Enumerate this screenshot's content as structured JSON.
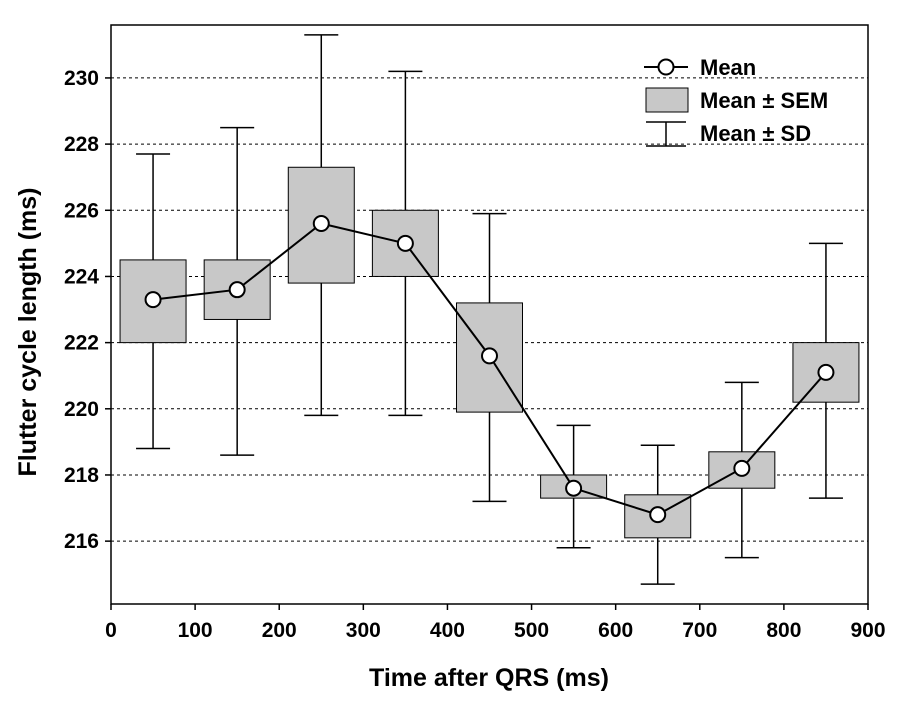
{
  "chart_data": {
    "type": "scatter",
    "xlabel": "Time after QRS (ms)",
    "ylabel": "Flutter cycle length (ms)",
    "xlim": [
      0,
      900
    ],
    "ylim": [
      214.1,
      231.6
    ],
    "xticks": [
      0,
      100,
      200,
      300,
      400,
      500,
      600,
      700,
      800,
      900
    ],
    "yticks": [
      216,
      218,
      220,
      222,
      224,
      226,
      228,
      230
    ],
    "grid": "horizontal dashed",
    "legend_position": "top-right",
    "legend": {
      "mean": "Mean",
      "sem": "Mean ± SEM",
      "sd": "Mean ± SD"
    },
    "colors": {
      "box_fill": "#c8c8c8",
      "line": "#000000",
      "marker_fill": "#ffffff"
    },
    "x": [
      50,
      150,
      250,
      350,
      450,
      550,
      650,
      750,
      850
    ],
    "mean": [
      223.3,
      223.6,
      225.6,
      225.0,
      221.6,
      217.6,
      216.8,
      218.2,
      221.1
    ],
    "sem_low": [
      222.0,
      222.7,
      223.8,
      224.0,
      219.9,
      217.3,
      216.1,
      217.6,
      220.2
    ],
    "sem_high": [
      224.5,
      224.5,
      227.3,
      226.0,
      223.2,
      218.0,
      217.4,
      218.7,
      222.0
    ],
    "sd_low": [
      218.8,
      218.6,
      219.8,
      219.8,
      217.2,
      215.8,
      214.7,
      215.5,
      217.3
    ],
    "sd_high": [
      227.7,
      228.5,
      231.3,
      230.2,
      225.9,
      219.5,
      218.9,
      220.8,
      225.0
    ]
  }
}
